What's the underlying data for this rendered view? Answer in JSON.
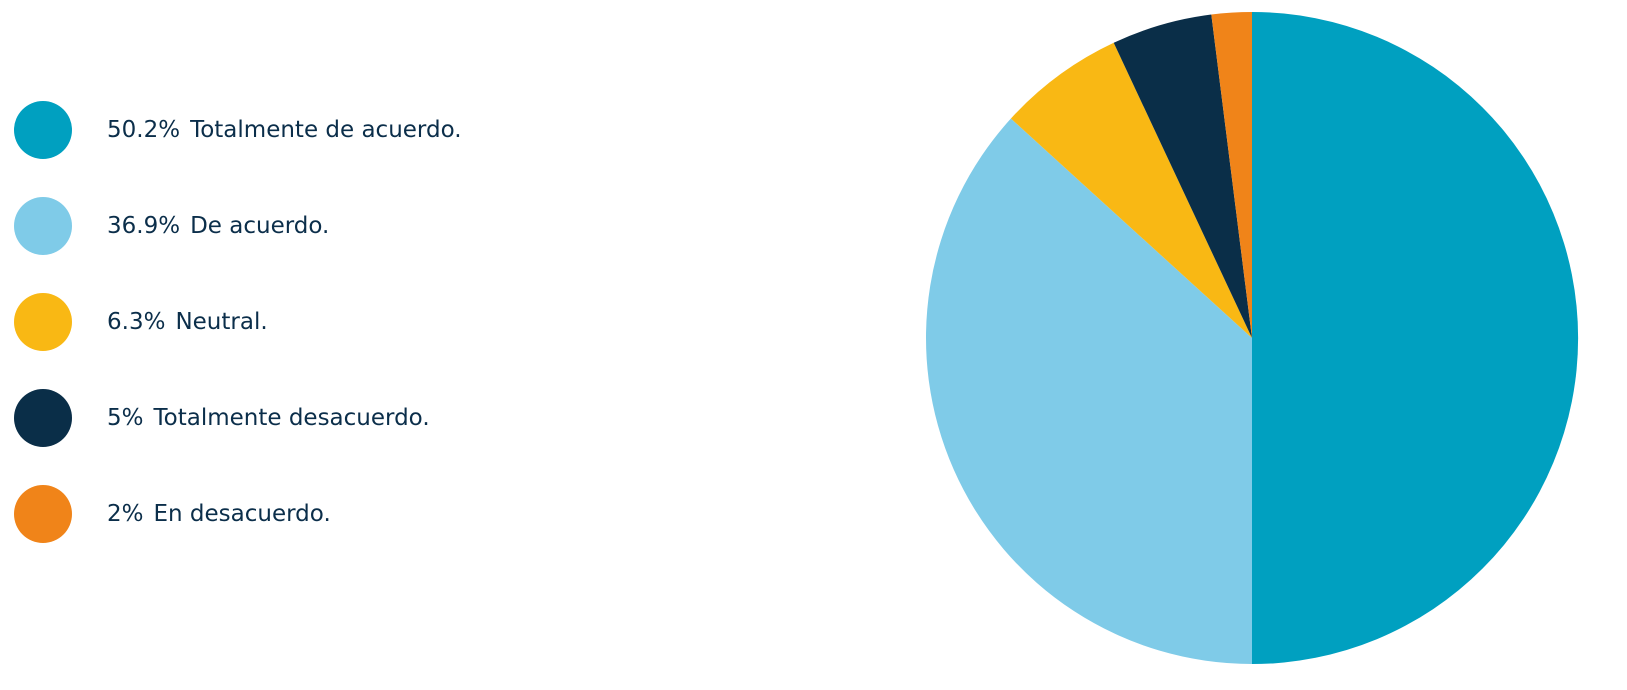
{
  "chart_data": {
    "type": "pie",
    "categories": [
      "Totalmente de acuerdo.",
      "De acuerdo.",
      "Neutral.",
      "Totalmente desacuerdo.",
      "En desacuerdo."
    ],
    "values": [
      50.2,
      36.9,
      6.3,
      5,
      2
    ],
    "value_labels": [
      "50.2%",
      "36.9%",
      "6.3%",
      "5%",
      "2%"
    ],
    "colors": [
      "#00a0c0",
      "#7fcbe8",
      "#f9b814",
      "#0a2e48",
      "#f08419"
    ]
  }
}
